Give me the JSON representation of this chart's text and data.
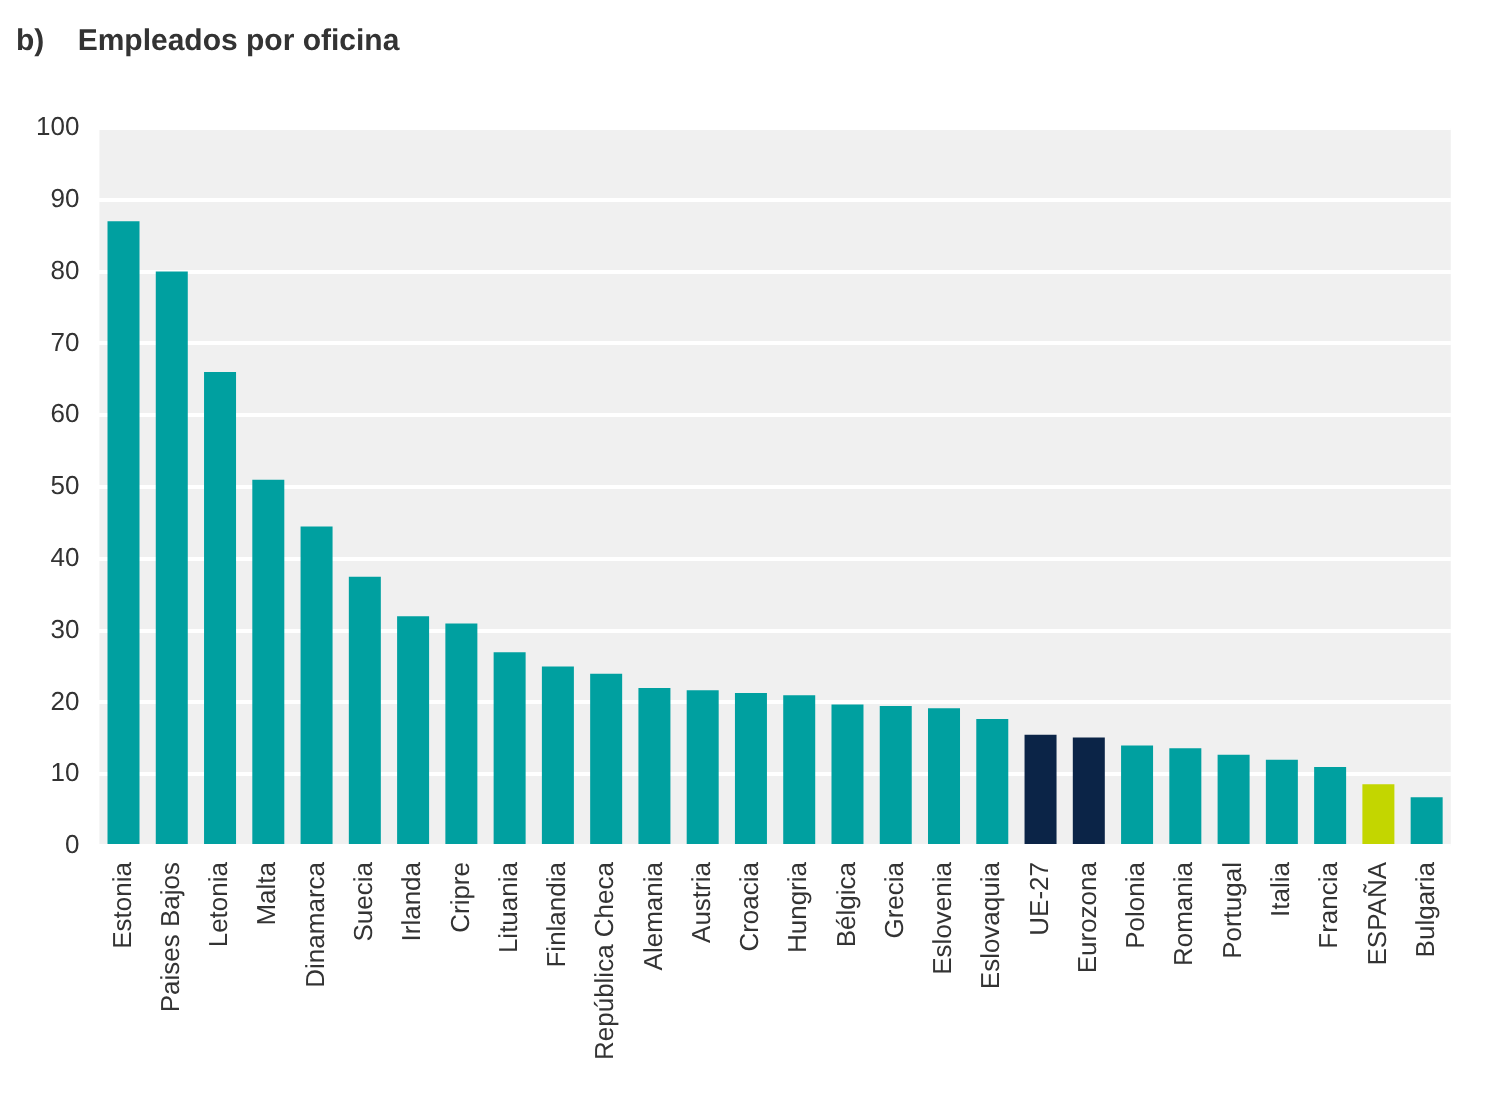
{
  "chart_data": {
    "type": "bar",
    "title": "b)    Empleados por oficina",
    "categories": [
      "Estonia",
      "Paises Bajos",
      "Letonia",
      "Malta",
      "Dinamarca",
      "Suecia",
      "Irlanda",
      "Cripre",
      "Lituania",
      "Finlandia",
      "República Checa",
      "Alemania",
      "Austria",
      "Croacia",
      "Hungria",
      "Bélgica",
      "Grecia",
      "Eslovenia",
      "Eslovaquia",
      "UE-27",
      "Eurozona",
      "Polonia",
      "Romania",
      "Portugal",
      "Italia",
      "Francia",
      "ESPAÑA",
      "Bulgaria"
    ],
    "values": [
      87,
      80,
      66,
      51,
      44.5,
      37.5,
      32,
      31,
      27,
      25,
      24,
      22,
      21.7,
      21.3,
      21,
      19.7,
      19.5,
      19.2,
      17.7,
      15.5,
      15.1,
      14,
      13.6,
      12.7,
      12,
      11,
      8.6,
      6.8
    ],
    "colors": [
      "#00a0a0",
      "#00a0a0",
      "#00a0a0",
      "#00a0a0",
      "#00a0a0",
      "#00a0a0",
      "#00a0a0",
      "#00a0a0",
      "#00a0a0",
      "#00a0a0",
      "#00a0a0",
      "#00a0a0",
      "#00a0a0",
      "#00a0a0",
      "#00a0a0",
      "#00a0a0",
      "#00a0a0",
      "#00a0a0",
      "#00a0a0",
      "#0b2447",
      "#0b2447",
      "#00a0a0",
      "#00a0a0",
      "#00a0a0",
      "#00a0a0",
      "#00a0a0",
      "#c3d600",
      "#00a0a0"
    ],
    "ylim": [
      0,
      100
    ],
    "yticks": [
      0,
      10,
      20,
      30,
      40,
      50,
      60,
      70,
      80,
      90,
      100
    ],
    "grid": "y",
    "legend": false
  }
}
